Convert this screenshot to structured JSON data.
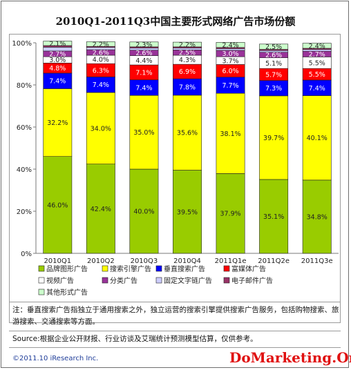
{
  "chart_data": {
    "type": "bar",
    "stacked": true,
    "title": "2010Q1-2011Q3中国主要形式网络广告市场份额",
    "categories": [
      "2010Q1",
      "2010Q2",
      "2010Q3",
      "2010Q4",
      "2011Q1e",
      "2011Q2e",
      "2011Q3e"
    ],
    "y_ticks": [
      "0%",
      "20%",
      "40%",
      "60%",
      "80%",
      "100%"
    ],
    "ylim": [
      0,
      100
    ],
    "grid": false,
    "legend_position": "bottom",
    "series": [
      {
        "name": "品牌图形广告",
        "color": "#99cc00",
        "values": [
          46.0,
          42.4,
          40.0,
          39.5,
          37.9,
          35.1,
          34.8
        ],
        "labels": [
          "46.0%",
          "42.4%",
          "40.0%",
          "39.5%",
          "37.9%",
          "35.1%",
          "34.8%"
        ]
      },
      {
        "name": "搜索引擎广告",
        "color": "#ffff00",
        "values": [
          32.2,
          34.0,
          35.0,
          35.6,
          38.1,
          39.7,
          40.1
        ],
        "labels": [
          "32.2%",
          "34.0%",
          "35.0%",
          "35.6%",
          "38.1%",
          "39.7%",
          "40.1%"
        ]
      },
      {
        "name": "垂直搜索广告",
        "color": "#0000ff",
        "values": [
          7.4,
          7.4,
          7.4,
          7.8,
          7.7,
          7.3,
          7.4
        ],
        "labels": [
          "7.4%",
          "7.4%",
          "7.4%",
          "7.8%",
          "7.7%",
          "7.3%",
          "7.4%"
        ]
      },
      {
        "name": "富媒体广告",
        "color": "#ff0000",
        "values": [
          4.8,
          6.3,
          7.1,
          6.9,
          6.0,
          5.7,
          5.5
        ],
        "labels": [
          "4.8%",
          "6.3%",
          "7.1%",
          "6.9%",
          "6.0%",
          "5.7%",
          "5.5%"
        ]
      },
      {
        "name": "视频广告",
        "color": "#ffffff",
        "values": [
          3.0,
          4.0,
          4.4,
          4.3,
          3.7,
          5.1,
          5.5
        ],
        "labels": [
          "3.0%",
          "4.0%",
          "4.4%",
          "4.3%",
          "3.7%",
          "5.1%",
          "5.5%"
        ]
      },
      {
        "name": "分类广告",
        "color": "#993399",
        "values": [
          2.7,
          2.6,
          2.6,
          2.5,
          3.0,
          2.6,
          2.7
        ],
        "labels": [
          "2.7%",
          "2.6%",
          "2.6%",
          "2.5%",
          "3.0%",
          "2.6%",
          "2.7%"
        ]
      },
      {
        "name": "固定文字链广告",
        "color": "#ccccff",
        "values": [
          1.8,
          1.1,
          1.0,
          0.9,
          0.8,
          0.8,
          0.8
        ],
        "labels": [
          "",
          "",
          "",
          "",
          "",
          "",
          ""
        ]
      },
      {
        "name": "电子邮件广告",
        "color": "#993366",
        "values": [
          0.8,
          0.5,
          0.6,
          0.6,
          0.6,
          0.6,
          0.6
        ],
        "labels": [
          "",
          "",
          "",
          "",
          "",
          "",
          ""
        ]
      },
      {
        "name": "其他形式广告",
        "color": "#ccffcc",
        "values": [
          2.1,
          2.2,
          2.3,
          2.2,
          2.4,
          2.5,
          2.4
        ],
        "labels": [
          "2.1%",
          "2.2%",
          "2.3%",
          "2.2%",
          "2.4%",
          "2.5%",
          "2.4%"
        ]
      }
    ]
  },
  "notes": {
    "note": "注：垂直搜索广告指独立于通用搜索之外，独立运营的搜索引擎提供搜索广告服务，包括购物搜索、旅游搜索、交通搜索等方面。",
    "source": "Source:根据企业公开财报、行业访谈及艾瑞统计预测模型估算，仅供参考。",
    "copyright": "©2011.10 iResearch Inc.",
    "watermark": "DoMarketing.Org"
  }
}
